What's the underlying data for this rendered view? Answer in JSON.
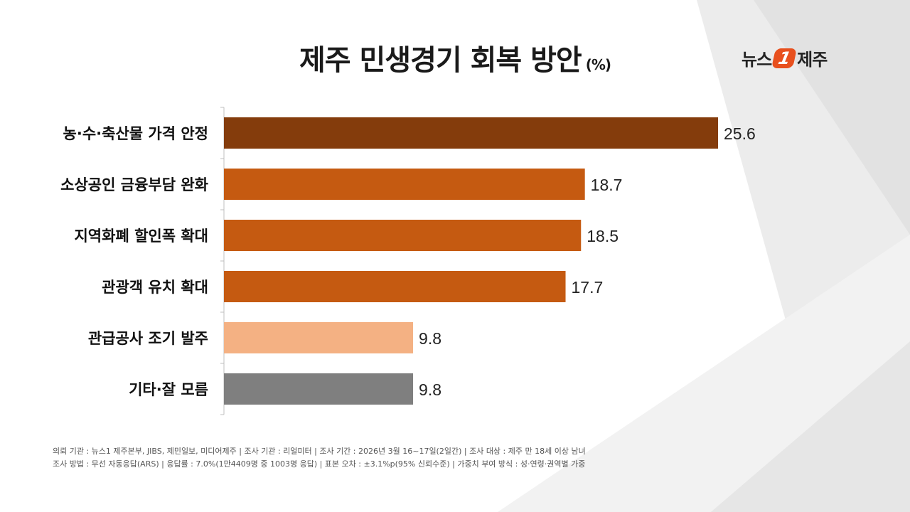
{
  "header": {
    "title": "제주 민생경기 회복 방안",
    "unit": "(%)"
  },
  "logo": {
    "left": "뉴스",
    "mark": "1",
    "right": "제주"
  },
  "chart_data": {
    "type": "bar",
    "orientation": "horizontal",
    "title": "제주 민생경기 회복 방안",
    "unit": "(%)",
    "categories": [
      "농·수·축산물 가격 안정",
      "소상공인 금융부담 완화",
      "지역화폐 할인폭 확대",
      "관광객 유치 확대",
      "관급공사 조기 발주",
      "기타·잘 모름"
    ],
    "values": [
      25.6,
      18.7,
      18.5,
      17.7,
      9.8,
      9.8
    ],
    "labels": [
      "25.6",
      "18.7",
      "18.5",
      "17.7",
      "9.8",
      "9.8"
    ],
    "colors": [
      "#843c0c",
      "#c55a11",
      "#c55a11",
      "#c55a11",
      "#f4b183",
      "#7f7f7f"
    ],
    "xlim": [
      0,
      25.6
    ],
    "grid": false
  },
  "footer": {
    "line1": "의뢰 기관 : 뉴스1 제주본부, JIBS, 제민일보, 미디어제주  |  조사 기관 : 리얼미터  |  조사 기간 : 2026년 3월 16~17일(2일간)  |  조사 대상 : 제주 만 18세 이상 남녀",
    "line2": "조사 방법 : 무선 자동응답(ARS)  |  응답률 : 7.0%(1만4409명 중 1003명 응답)  |  표본 오차 : ±3.1%p(95% 신뢰수준)  |  가중치 부여 방식 : 성·연령·권역별 가중"
  }
}
